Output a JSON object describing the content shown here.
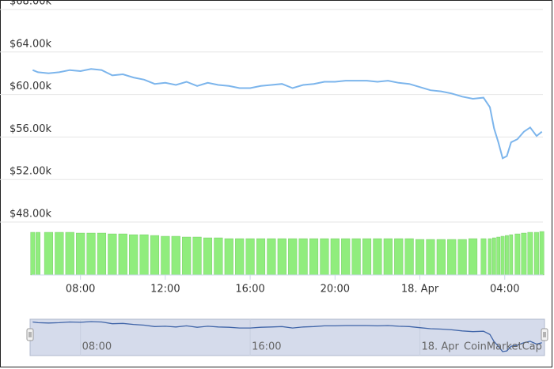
{
  "chart_data": {
    "type": "line",
    "credit": "CoinMarketCap",
    "x": [
      5.75,
      6,
      6.5,
      7,
      7.5,
      8,
      8.5,
      9,
      9.5,
      10,
      10.5,
      11,
      11.5,
      12,
      12.5,
      13,
      13.5,
      14,
      14.5,
      15,
      15.5,
      16,
      16.5,
      17,
      17.5,
      18,
      18.5,
      19,
      19.5,
      20,
      20.5,
      21,
      21.5,
      22,
      22.5,
      23,
      23.5,
      24,
      24.5,
      25,
      25.5,
      26,
      26.5,
      27,
      27.3,
      27.5,
      27.7,
      27.9,
      28.1,
      28.3,
      28.6,
      28.9,
      29.2,
      29.5,
      29.75
    ],
    "series": [
      {
        "color": "#7cb5ec",
        "values": [
          62300,
          62100,
          62000,
          62100,
          62300,
          62200,
          62400,
          62300,
          61800,
          61900,
          61600,
          61400,
          61000,
          61100,
          60900,
          61200,
          60800,
          61100,
          60900,
          60800,
          60600,
          60600,
          60800,
          60900,
          61000,
          60600,
          60900,
          61000,
          61200,
          61200,
          61300,
          61300,
          61300,
          61200,
          61300,
          61100,
          61000,
          60700,
          60400,
          60300,
          60100,
          59800,
          59600,
          59700,
          58800,
          56800,
          55500,
          54000,
          54200,
          55500,
          55800,
          56500,
          56900,
          56100,
          56500
        ]
      },
      {
        "type": "bar",
        "axis": "y2",
        "color": "#90ed7d",
        "values": [
          54,
          54,
          54,
          54,
          54,
          53,
          53,
          53,
          52,
          52,
          51,
          51,
          50,
          49,
          49,
          48,
          48,
          47,
          47,
          46,
          46,
          46,
          46,
          46,
          46,
          46,
          46,
          46,
          46,
          46,
          46,
          46,
          46,
          46,
          46,
          46,
          46,
          45,
          45,
          45,
          45,
          45,
          46,
          46,
          46,
          47,
          48,
          49,
          50,
          51,
          52,
          53,
          54,
          54,
          55
        ]
      }
    ],
    "xlim": [
      5.7,
      29.8
    ],
    "xticks": [
      {
        "value": 8,
        "label": "08:00"
      },
      {
        "value": 12,
        "label": "12:00"
      },
      {
        "value": 16,
        "label": "16:00"
      },
      {
        "value": 20,
        "label": "20:00"
      },
      {
        "value": 24,
        "label": "18. Apr"
      },
      {
        "value": 28,
        "label": "04:00"
      }
    ],
    "ylim": [
      48000,
      68000
    ],
    "yticks": [
      {
        "value": 48000,
        "label": "$48.00k"
      },
      {
        "value": 52000,
        "label": "$52.00k"
      },
      {
        "value": 56000,
        "label": "$56.00k"
      },
      {
        "value": 60000,
        "label": "$60.00k"
      },
      {
        "value": 64000,
        "label": "$64.00k"
      },
      {
        "value": 68000,
        "label": "$68.00k"
      }
    ],
    "y2lim": [
      0,
      60
    ],
    "grid": true,
    "navigator": {
      "fill": "#d5dbeb",
      "line_color": "#3f64a8",
      "xticks": [
        0,
        2,
        4
      ]
    }
  }
}
